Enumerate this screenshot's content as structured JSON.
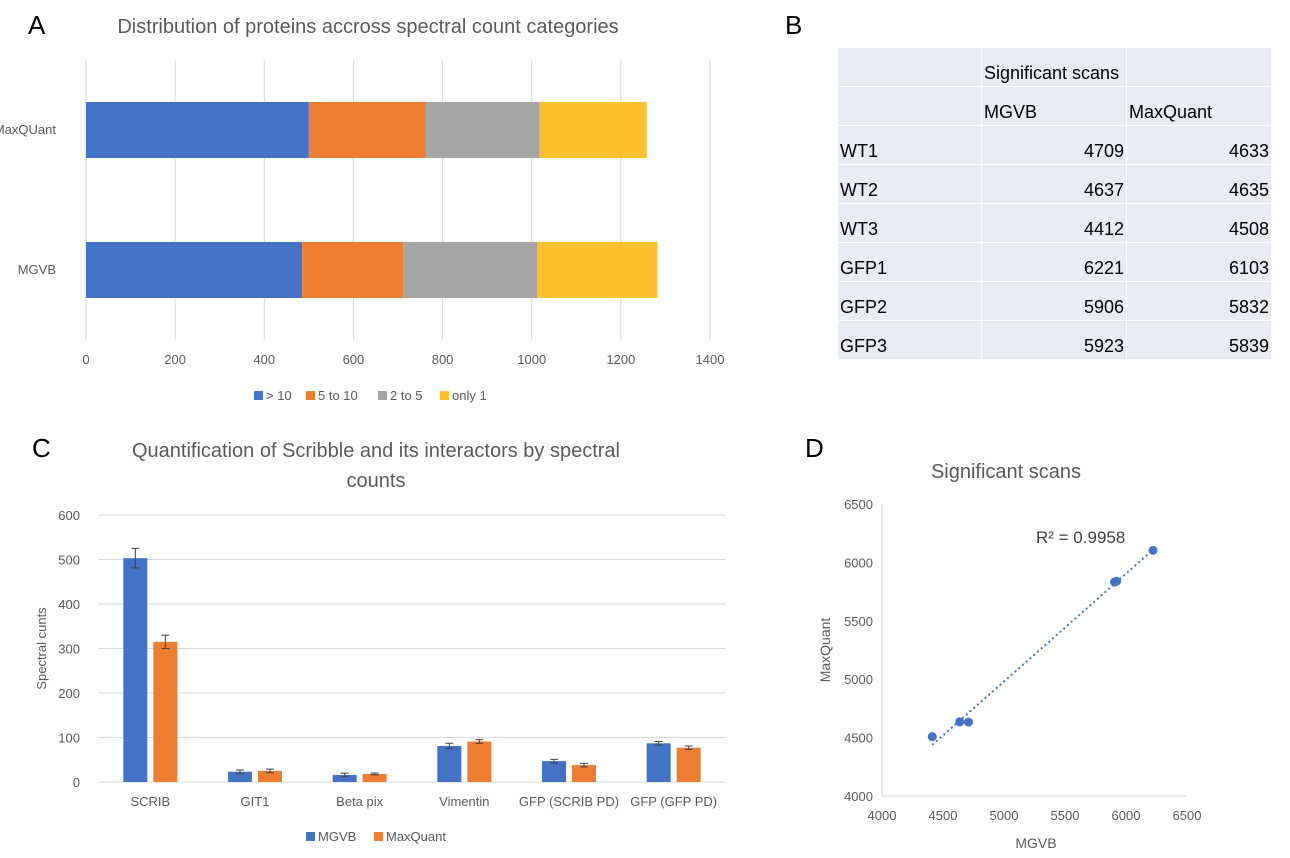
{
  "panels": {
    "a": "A",
    "b": "B",
    "c": "C",
    "d": "D"
  },
  "chart_data": [
    {
      "id": "A",
      "type": "bar",
      "orientation": "horizontal",
      "stacked": true,
      "title": "Distribution of proteins accross spectral count categories",
      "categories": [
        "MaxQUant",
        "MGVB"
      ],
      "series": [
        {
          "name": "> 10",
          "color": "#4472c4",
          "values": [
            500,
            485
          ]
        },
        {
          "name": "5 to 10",
          "color": "#ed7d31",
          "values": [
            263,
            227
          ]
        },
        {
          "name": "2 to 5",
          "color": "#a5a5a5",
          "values": [
            255,
            300
          ]
        },
        {
          "name": "only 1",
          "color": "#ffc02f",
          "values": [
            240,
            270
          ]
        }
      ],
      "xlim": [
        0,
        1400
      ],
      "xticks": [
        0,
        200,
        400,
        600,
        800,
        1000,
        1200,
        1400
      ],
      "grid": "vertical",
      "legend": "bottom"
    },
    {
      "id": "B",
      "type": "table",
      "header": [
        "",
        "Significant scans",
        ""
      ],
      "subheader": [
        "",
        "MGVB",
        "MaxQuant"
      ],
      "rows": [
        [
          "WT1",
          "4709",
          "4633"
        ],
        [
          "WT2",
          "4637",
          "4635"
        ],
        [
          "WT3",
          "4412",
          "4508"
        ],
        [
          "GFP1",
          "6221",
          "6103"
        ],
        [
          "GFP2",
          "5906",
          "5832"
        ],
        [
          "GFP3",
          "5923",
          "5839"
        ]
      ]
    },
    {
      "id": "C",
      "type": "bar",
      "title": "Quantification of Scribble and its interactors by spectral counts",
      "title_lines": [
        "Quantification of Scribble and its interactors by spectral",
        "counts"
      ],
      "ylabel": "Spectral cunts",
      "categories": [
        "SCRIB",
        "GIT1",
        "Beta pix",
        "Vimentin",
        "GFP (SCRIB PD)",
        "GFP  (GFP PD)"
      ],
      "series": [
        {
          "name": "MGVB",
          "color": "#4472c4",
          "values": [
            503,
            23,
            16,
            81,
            47,
            87
          ],
          "errors": [
            22,
            4,
            4,
            6,
            4,
            4
          ]
        },
        {
          "name": "MaxQuant",
          "color": "#ed7d31",
          "values": [
            315,
            25,
            18,
            91,
            38,
            77
          ],
          "errors": [
            15,
            4,
            2,
            4,
            4,
            4
          ]
        }
      ],
      "ylim": [
        0,
        600
      ],
      "yticks": [
        0,
        100,
        200,
        300,
        400,
        500,
        600
      ],
      "grid": "horizontal",
      "legend": "bottom"
    },
    {
      "id": "D",
      "type": "scatter",
      "title": "Significant scans",
      "xlabel": "MGVB",
      "ylabel": "MaxQuant",
      "points": [
        [
          4709,
          4633
        ],
        [
          4637,
          4635
        ],
        [
          4412,
          4508
        ],
        [
          6221,
          6103
        ],
        [
          5906,
          5832
        ],
        [
          5923,
          5839
        ]
      ],
      "trendline": {
        "type": "linear",
        "dotted": true,
        "label": "R² = 0.9958"
      },
      "xlim": [
        4000,
        6500
      ],
      "ylim": [
        4000,
        6500
      ],
      "xticks": [
        4000,
        4500,
        5000,
        5500,
        6000,
        6500
      ],
      "yticks": [
        4000,
        4500,
        5000,
        5500,
        6000,
        6500
      ],
      "color": "#4472c4"
    }
  ]
}
